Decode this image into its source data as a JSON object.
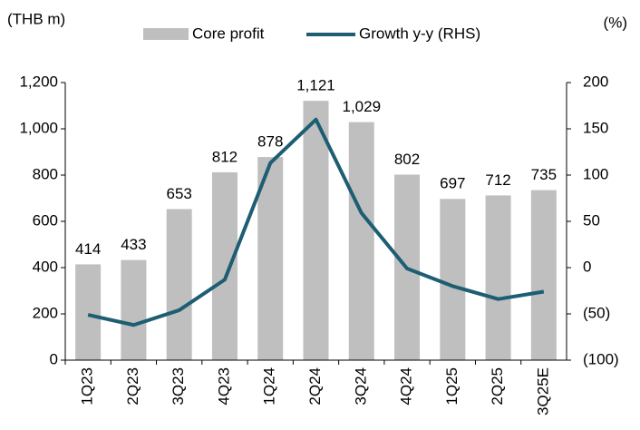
{
  "chart_data": {
    "type": "bar",
    "y_label": "(THB m)",
    "y2_label": "(%)",
    "categories": [
      "1Q23",
      "2Q23",
      "3Q23",
      "4Q23",
      "1Q24",
      "2Q24",
      "3Q24",
      "4Q24",
      "1Q25",
      "2Q25",
      "3Q25E"
    ],
    "series": [
      {
        "name": "Core profit",
        "type": "bar",
        "color": "#bfbfbf",
        "values": [
          414,
          433,
          653,
          812,
          878,
          1121,
          1029,
          802,
          697,
          712,
          735
        ],
        "value_labels": [
          "414",
          "433",
          "653",
          "812",
          "878",
          "1,121",
          "1,029",
          "802",
          "697",
          "712",
          "735"
        ]
      },
      {
        "name": "Growth y-y (RHS)",
        "type": "line",
        "axis": "y2",
        "color": "#1d5e72",
        "values": [
          -51,
          -62,
          -46,
          -13,
          113,
          160,
          59,
          -1,
          -20,
          -34,
          -26
        ]
      }
    ],
    "ylim": [
      0,
      1200
    ],
    "yticks": [
      0,
      200,
      400,
      600,
      800,
      {
        "value": 1000,
        "label": "1,000"
      },
      {
        "value": 1200,
        "label": "1,200"
      }
    ],
    "y2lim": [
      -100,
      200
    ],
    "y2ticks": [
      {
        "value": -100,
        "label": "(100)"
      },
      {
        "value": -50,
        "label": "(50)"
      },
      0,
      50,
      100,
      150,
      200
    ],
    "legend": "top"
  }
}
